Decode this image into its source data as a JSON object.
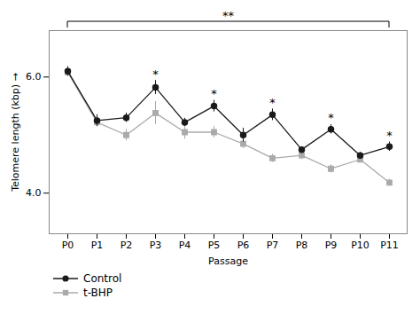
{
  "chart_data": {
    "type": "line",
    "xlabel": "Passage",
    "ylabel": "Telomere length (kbp)",
    "categories": [
      "P0",
      "P1",
      "P2",
      "P3",
      "P4",
      "P5",
      "P6",
      "P7",
      "P8",
      "P9",
      "P10",
      "P11"
    ],
    "series": [
      {
        "name": "Control",
        "color": "#1a1a1a",
        "marker": "circle",
        "values": [
          6.1,
          5.25,
          5.3,
          5.82,
          5.22,
          5.5,
          5.0,
          5.35,
          4.75,
          5.1,
          4.65,
          4.8
        ],
        "errors": [
          0.08,
          0.1,
          0.08,
          0.12,
          0.07,
          0.1,
          0.12,
          0.1,
          0.05,
          0.08,
          0.05,
          0.08
        ]
      },
      {
        "name": "t-BHP",
        "color": "#aaaaaa",
        "marker": "square",
        "values": [
          6.08,
          5.22,
          5.0,
          5.38,
          5.05,
          5.05,
          4.85,
          4.6,
          4.65,
          4.42,
          4.58,
          4.18
        ],
        "errors": [
          0.07,
          0.08,
          0.1,
          0.2,
          0.12,
          0.1,
          0.08,
          0.07,
          0.07,
          0.07,
          0.06,
          0.06
        ]
      }
    ],
    "ylim": [
      3.3,
      6.8
    ],
    "yticks": [
      4,
      6
    ],
    "grid": false,
    "legend": "bottom",
    "annotations": [
      {
        "series": "Control",
        "category": "P3",
        "text": "*"
      },
      {
        "series": "Control",
        "category": "P5",
        "text": "*"
      },
      {
        "series": "Control",
        "category": "P7",
        "text": "*"
      },
      {
        "series": "Control",
        "category": "P9",
        "text": "*"
      },
      {
        "series": "Control",
        "category": "P11",
        "text": "*"
      },
      {
        "from": "P0",
        "to": "P11",
        "text": "**"
      }
    ]
  }
}
